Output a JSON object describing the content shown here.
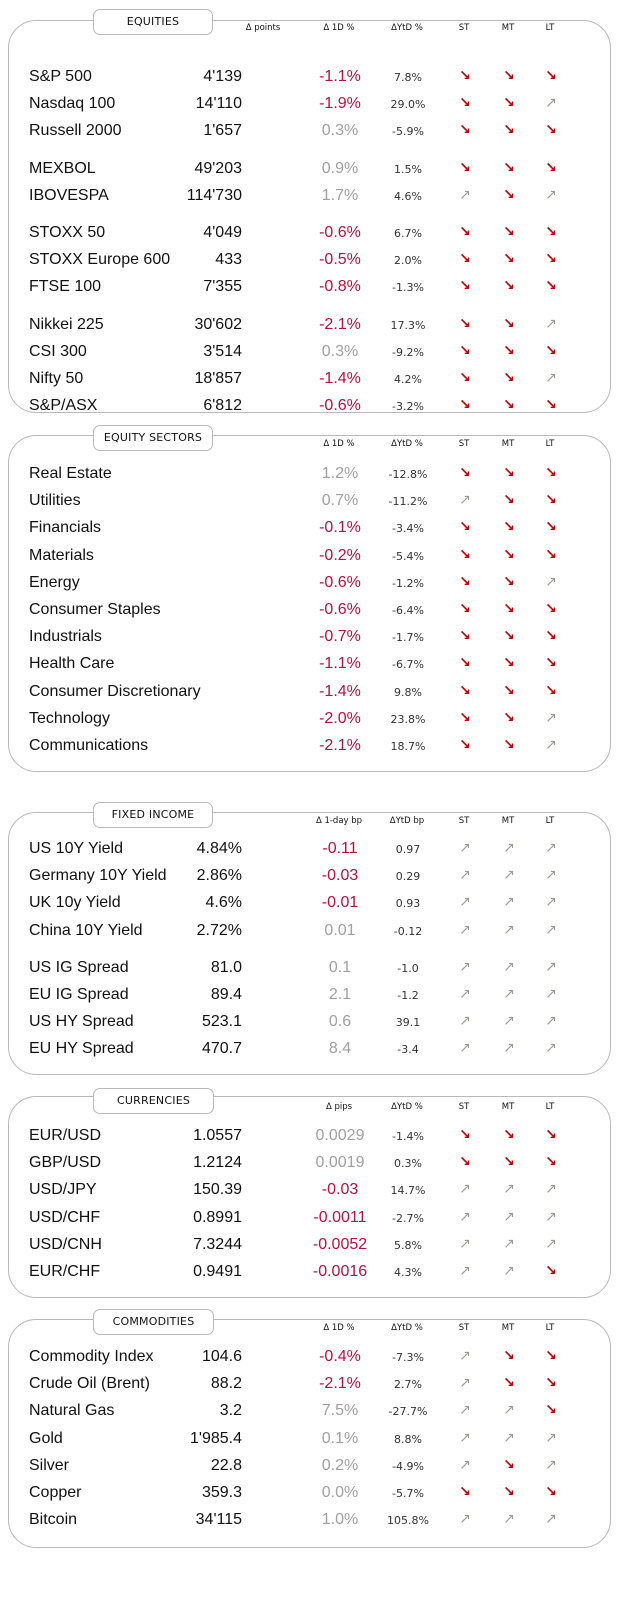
{
  "sections": [
    {
      "title": "EQUITIES",
      "headers": {
        "points": "Δ points",
        "chg": "Δ 1D %",
        "ytd": "ΔYtD %",
        "st": "ST",
        "mt": "MT",
        "lt": "LT"
      },
      "groups": [
        [
          {
            "name": "S&P 500",
            "value": "4'139",
            "chg": "-1.1%",
            "ytd": "7.8%",
            "st": "down",
            "mt": "down",
            "lt": "down"
          },
          {
            "name": "Nasdaq 100",
            "value": "14'110",
            "chg": "-1.9%",
            "ytd": "29.0%",
            "st": "down",
            "mt": "down",
            "lt": "up"
          },
          {
            "name": "Russell 2000",
            "value": "1'657",
            "chg": "0.3%",
            "ytd": "-5.9%",
            "st": "down",
            "mt": "down",
            "lt": "down"
          }
        ],
        [
          {
            "name": "MEXBOL",
            "value": "49'203",
            "chg": "0.9%",
            "ytd": "1.5%",
            "st": "down",
            "mt": "down",
            "lt": "down"
          },
          {
            "name": "IBOVESPA",
            "value": "114'730",
            "chg": "1.7%",
            "ytd": "4.6%",
            "st": "up",
            "mt": "down",
            "lt": "up"
          }
        ],
        [
          {
            "name": "STOXX 50",
            "value": "4'049",
            "chg": "-0.6%",
            "ytd": "6.7%",
            "st": "down",
            "mt": "down",
            "lt": "down"
          },
          {
            "name": "STOXX Europe 600",
            "value": "433",
            "chg": "-0.5%",
            "ytd": "2.0%",
            "st": "down",
            "mt": "down",
            "lt": "down"
          },
          {
            "name": "FTSE 100",
            "value": "7'355",
            "chg": "-0.8%",
            "ytd": "-1.3%",
            "st": "down",
            "mt": "down",
            "lt": "down"
          }
        ],
        [
          {
            "name": "Nikkei 225",
            "value": "30'602",
            "chg": "-2.1%",
            "ytd": "17.3%",
            "st": "down",
            "mt": "down",
            "lt": "up"
          },
          {
            "name": "CSI 300",
            "value": "3'514",
            "chg": "0.3%",
            "ytd": "-9.2%",
            "st": "down",
            "mt": "down",
            "lt": "down"
          },
          {
            "name": "Nifty  50",
            "value": "18'857",
            "chg": "-1.4%",
            "ytd": "4.2%",
            "st": "down",
            "mt": "down",
            "lt": "up"
          },
          {
            "name": "S&P/ASX",
            "value": "6'812",
            "chg": "-0.6%",
            "ytd": "-3.2%",
            "st": "down",
            "mt": "down",
            "lt": "down"
          }
        ]
      ]
    },
    {
      "title": "EQUITY  SECTORS",
      "headers": {
        "points": "",
        "chg": "Δ 1D %",
        "ytd": "ΔYtD %",
        "st": "ST",
        "mt": "MT",
        "lt": "LT"
      },
      "groups": [
        [
          {
            "name": "Real Estate",
            "value": "",
            "chg": "1.2%",
            "ytd": "-12.8%",
            "st": "down",
            "mt": "down",
            "lt": "down"
          },
          {
            "name": "Utilities",
            "value": "",
            "chg": "0.7%",
            "ytd": "-11.2%",
            "st": "up",
            "mt": "down",
            "lt": "down"
          },
          {
            "name": "Financials",
            "value": "",
            "chg": "-0.1%",
            "ytd": "-3.4%",
            "st": "down",
            "mt": "down",
            "lt": "down"
          },
          {
            "name": "Materials",
            "value": "",
            "chg": "-0.2%",
            "ytd": "-5.4%",
            "st": "down",
            "mt": "down",
            "lt": "down"
          },
          {
            "name": "Energy",
            "value": "",
            "chg": "-0.6%",
            "ytd": "-1.2%",
            "st": "down",
            "mt": "down",
            "lt": "up"
          },
          {
            "name": "Consumer Staples",
            "value": "",
            "chg": "-0.6%",
            "ytd": "-6.4%",
            "st": "down",
            "mt": "down",
            "lt": "down"
          },
          {
            "name": "Industrials",
            "value": "",
            "chg": "-0.7%",
            "ytd": "-1.7%",
            "st": "down",
            "mt": "down",
            "lt": "down"
          },
          {
            "name": "Health Care",
            "value": "",
            "chg": "-1.1%",
            "ytd": "-6.7%",
            "st": "down",
            "mt": "down",
            "lt": "down"
          },
          {
            "name": "Consumer Discretionary",
            "value": "",
            "chg": "-1.4%",
            "ytd": "9.8%",
            "st": "down",
            "mt": "down",
            "lt": "down"
          },
          {
            "name": "Technology",
            "value": "",
            "chg": "-2.0%",
            "ytd": "23.8%",
            "st": "down",
            "mt": "down",
            "lt": "up"
          },
          {
            "name": "Communications",
            "value": "",
            "chg": "-2.1%",
            "ytd": "18.7%",
            "st": "down",
            "mt": "down",
            "lt": "up"
          }
        ]
      ]
    },
    {
      "title": "FIXED  INCOME",
      "headers": {
        "points": "",
        "chg": "Δ 1-day bp",
        "ytd": "ΔYtD bp",
        "st": "ST",
        "mt": "MT",
        "lt": "LT"
      },
      "groups": [
        [
          {
            "name": "US 10Y Yield",
            "value": "4.84%",
            "chg": "-0.11",
            "ytd": "0.97",
            "st": "up",
            "mt": "up",
            "lt": "up"
          },
          {
            "name": "Germany 10Y Yield",
            "value": "2.86%",
            "chg": "-0.03",
            "ytd": "0.29",
            "st": "up",
            "mt": "up",
            "lt": "up"
          },
          {
            "name": "UK 10y Yield",
            "value": "4.6%",
            "chg": "-0.01",
            "ytd": "0.93",
            "st": "up",
            "mt": "up",
            "lt": "up"
          },
          {
            "name": "China 10Y Yield",
            "value": "2.72%",
            "chg": "0.01",
            "ytd": "-0.12",
            "st": "up",
            "mt": "up",
            "lt": "up"
          }
        ],
        [
          {
            "name": "US IG Spread",
            "value": "81.0",
            "chg": "0.1",
            "ytd": "-1.0",
            "st": "up",
            "mt": "up",
            "lt": "up"
          },
          {
            "name": "EU IG Spread",
            "value": "89.4",
            "chg": "2.1",
            "ytd": "-1.2",
            "st": "up",
            "mt": "up",
            "lt": "up"
          },
          {
            "name": "US HY Spread",
            "value": "523.1",
            "chg": "0.6",
            "ytd": "39.1",
            "st": "up",
            "mt": "up",
            "lt": "up"
          },
          {
            "name": "EU HY Spread",
            "value": "470.7",
            "chg": "8.4",
            "ytd": "-3.4",
            "st": "up",
            "mt": "up",
            "lt": "up"
          }
        ]
      ]
    },
    {
      "title": "CURRENCIES",
      "headers": {
        "points": "",
        "chg": "Δ pips",
        "ytd": "ΔYtD %",
        "st": "ST",
        "mt": "MT",
        "lt": "LT"
      },
      "groups": [
        [
          {
            "name": "EUR/USD",
            "value": "1.0557",
            "chg": "0.0029",
            "ytd": "-1.4%",
            "st": "down",
            "mt": "down",
            "lt": "down"
          },
          {
            "name": "GBP/USD",
            "value": "1.2124",
            "chg": "0.0019",
            "ytd": "0.3%",
            "st": "down",
            "mt": "down",
            "lt": "down"
          },
          {
            "name": "USD/JPY",
            "value": "150.39",
            "chg": "-0.03",
            "ytd": "14.7%",
            "st": "up",
            "mt": "up",
            "lt": "up"
          },
          {
            "name": "USD/CHF",
            "value": "0.8991",
            "chg": "-0.0011",
            "ytd": "-2.7%",
            "st": "up",
            "mt": "up",
            "lt": "up"
          },
          {
            "name": "USD/CNH",
            "value": "7.3244",
            "chg": "-0.0052",
            "ytd": "5.8%",
            "st": "up",
            "mt": "up",
            "lt": "up"
          },
          {
            "name": "EUR/CHF",
            "value": "0.9491",
            "chg": "-0.0016",
            "ytd": "4.3%",
            "st": "up",
            "mt": "up",
            "lt": "down"
          }
        ]
      ]
    },
    {
      "title": "COMMODITIES",
      "headers": {
        "points": "",
        "chg": "Δ 1D %",
        "ytd": "ΔYtD %",
        "st": "ST",
        "mt": "MT",
        "lt": "LT"
      },
      "groups": [
        [
          {
            "name": "Commodity Index",
            "value": "104.6",
            "chg": "-0.4%",
            "ytd": "-7.3%",
            "st": "up",
            "mt": "down",
            "lt": "down"
          },
          {
            "name": "Crude Oil (Brent)",
            "value": "88.2",
            "chg": "-2.1%",
            "ytd": "2.7%",
            "st": "up",
            "mt": "down",
            "lt": "down"
          },
          {
            "name": "Natural Gas",
            "value": "3.2",
            "chg": "7.5%",
            "ytd": "-27.7%",
            "st": "up",
            "mt": "up",
            "lt": "down"
          },
          {
            "name": "Gold",
            "value": "1'985.4",
            "chg": "0.1%",
            "ytd": "8.8%",
            "st": "up",
            "mt": "up",
            "lt": "up"
          },
          {
            "name": "Silver",
            "value": "22.8",
            "chg": "0.2%",
            "ytd": "-4.9%",
            "st": "up",
            "mt": "down",
            "lt": "up"
          },
          {
            "name": "Copper",
            "value": "359.3",
            "chg": "0.0%",
            "ytd": "-5.7%",
            "st": "down",
            "mt": "down",
            "lt": "down"
          },
          {
            "name": "Bitcoin",
            "value": "34'115",
            "chg": "1.0%",
            "ytd": "105.8%",
            "st": "up",
            "mt": "up",
            "lt": "up"
          }
        ]
      ]
    }
  ],
  "colors": {
    "negative": "#b5123d",
    "positive_muted": "#a0a0a0",
    "arrow_down": "#c00000",
    "arrow_up": "#a09a95",
    "border": "#b9b9b9"
  },
  "icons": {
    "down": "arrow-down-right-icon",
    "up": "arrow-up-right-icon"
  }
}
